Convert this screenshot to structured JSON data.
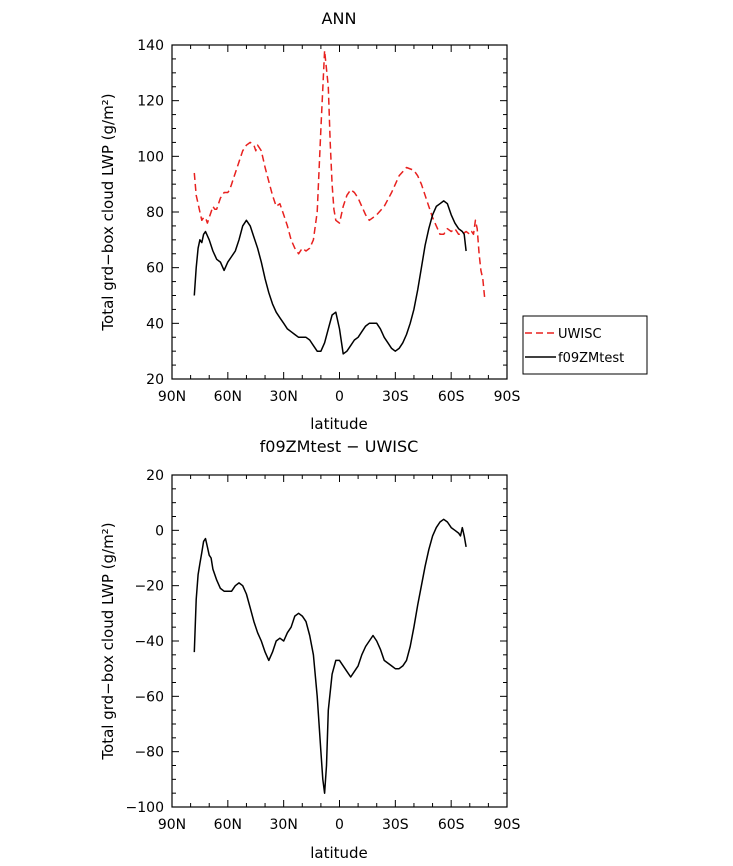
{
  "chart_data": [
    {
      "type": "line",
      "title": "ANN",
      "xlabel": "latitude",
      "ylabel": "Total grd−box cloud LWP (g/m²)",
      "xlim": [
        90,
        -90
      ],
      "ylim": [
        20,
        140
      ],
      "xticks": [
        90,
        60,
        30,
        0,
        -30,
        -60,
        -90
      ],
      "xtick_labels": [
        "90N",
        "60N",
        "30N",
        "0",
        "30S",
        "60S",
        "90S"
      ],
      "yticks": [
        20,
        40,
        60,
        80,
        100,
        120,
        140
      ],
      "ytick_labels": [
        "20",
        "40",
        "60",
        "80",
        "100",
        "120",
        "140"
      ],
      "legend_position": "right",
      "series": [
        {
          "name": "UWISC",
          "color": "#e8211f",
          "dash": "dashed",
          "x": [
            78,
            77,
            76,
            75,
            74,
            73,
            72,
            71,
            70,
            69,
            68,
            67,
            66,
            65,
            64,
            63,
            62,
            61,
            60,
            59,
            58,
            57,
            56,
            54,
            52,
            50,
            48,
            46,
            45,
            44,
            43,
            42,
            41,
            40,
            38,
            36,
            34,
            32,
            30,
            28,
            26,
            24,
            22,
            20,
            18,
            16,
            14,
            12,
            10,
            8,
            6,
            5,
            4,
            3,
            2,
            0,
            -2,
            -4,
            -6,
            -8,
            -10,
            -12,
            -14,
            -16,
            -18,
            -20,
            -24,
            -28,
            -32,
            -36,
            -40,
            -42,
            -44,
            -46,
            -48,
            -50,
            -52,
            -54,
            -56,
            -58,
            -60,
            -62,
            -64,
            -66,
            -68,
            -70,
            -71,
            -72,
            -73,
            -74,
            -75,
            -76,
            -77,
            -78
          ],
          "y": [
            94,
            86,
            83,
            80,
            77,
            78,
            78,
            76,
            78,
            80,
            82,
            81,
            81,
            83,
            85,
            86,
            87,
            87,
            87,
            88,
            90,
            92,
            94,
            98,
            102,
            104,
            105,
            104,
            102,
            104,
            103,
            102,
            99,
            96,
            91,
            86,
            82,
            83,
            79,
            75,
            70,
            67,
            65,
            67,
            66,
            67,
            70,
            80,
            110,
            138,
            125,
            105,
            90,
            81,
            77,
            76,
            82,
            86,
            88,
            87,
            85,
            82,
            79,
            77,
            78,
            79,
            82,
            87,
            93,
            96,
            95,
            93,
            90,
            86,
            82,
            78,
            75,
            72,
            72,
            74,
            73,
            74,
            72,
            72,
            73,
            72,
            73,
            72,
            77,
            74,
            65,
            59,
            56,
            49
          ]
        },
        {
          "name": "f09ZMtest",
          "color": "#000000",
          "dash": "solid",
          "x": [
            78,
            77,
            76,
            75,
            74,
            73,
            72,
            70,
            68,
            66,
            64,
            62,
            60,
            58,
            56,
            54,
            52,
            50,
            48,
            46,
            44,
            42,
            40,
            38,
            36,
            34,
            32,
            30,
            28,
            26,
            24,
            22,
            20,
            18,
            16,
            14,
            12,
            10,
            8,
            6,
            4,
            2,
            0,
            -2,
            -4,
            -6,
            -8,
            -10,
            -12,
            -14,
            -16,
            -18,
            -20,
            -22,
            -24,
            -26,
            -28,
            -30,
            -32,
            -34,
            -36,
            -38,
            -40,
            -42,
            -44,
            -46,
            -48,
            -50,
            -52,
            -54,
            -56,
            -58,
            -60,
            -62,
            -64,
            -66,
            -67,
            -68
          ],
          "y": [
            50,
            60,
            67,
            70,
            69,
            72,
            73,
            70,
            66,
            63,
            62,
            59,
            62,
            64,
            66,
            70,
            75,
            77,
            75,
            71,
            67,
            62,
            56,
            51,
            47,
            44,
            42,
            40,
            38,
            37,
            36,
            35,
            35,
            35,
            34,
            32,
            30,
            30,
            33,
            38,
            43,
            44,
            38,
            29,
            30,
            32,
            34,
            35,
            37,
            39,
            40,
            40,
            40,
            38,
            35,
            33,
            31,
            30,
            31,
            33,
            36,
            40,
            45,
            52,
            60,
            68,
            74,
            79,
            82,
            83,
            84,
            83,
            79,
            76,
            74,
            73,
            72,
            66
          ]
        }
      ]
    },
    {
      "type": "line",
      "title": "f09ZMtest − UWISC",
      "xlabel": "latitude",
      "ylabel": "Total grd−box cloud LWP (g/m²)",
      "xlim": [
        90,
        -90
      ],
      "ylim": [
        -100,
        20
      ],
      "xticks": [
        90,
        60,
        30,
        0,
        -30,
        -60,
        -90
      ],
      "xtick_labels": [
        "90N",
        "60N",
        "30N",
        "0",
        "30S",
        "60S",
        "90S"
      ],
      "yticks": [
        -100,
        -80,
        -60,
        -40,
        -20,
        0,
        20
      ],
      "ytick_labels": [
        "−100",
        "−80",
        "−60",
        "−40",
        "−20",
        "0",
        "20"
      ],
      "series": [
        {
          "color": "#000000",
          "dash": "solid",
          "x": [
            78,
            77,
            76,
            75,
            74,
            73,
            72,
            71,
            70,
            69,
            68,
            66,
            64,
            62,
            60,
            58,
            56,
            54,
            52,
            50,
            48,
            46,
            44,
            42,
            40,
            38,
            36,
            34,
            32,
            30,
            28,
            26,
            24,
            22,
            20,
            18,
            16,
            14,
            12,
            10,
            9,
            8,
            7,
            6,
            4,
            2,
            0,
            -2,
            -4,
            -6,
            -8,
            -10,
            -12,
            -14,
            -16,
            -18,
            -20,
            -22,
            -24,
            -26,
            -28,
            -30,
            -32,
            -34,
            -36,
            -38,
            -40,
            -42,
            -44,
            -46,
            -48,
            -50,
            -52,
            -54,
            -56,
            -58,
            -60,
            -62,
            -64,
            -65,
            -66,
            -67,
            -68
          ],
          "y": [
            -44,
            -25,
            -16,
            -12,
            -8,
            -4,
            -3,
            -6,
            -9,
            -10,
            -14,
            -18,
            -21,
            -22,
            -22,
            -22,
            -20,
            -19,
            -20,
            -23,
            -28,
            -33,
            -37,
            -40,
            -44,
            -47,
            -44,
            -40,
            -39,
            -40,
            -37,
            -35,
            -31,
            -30,
            -31,
            -33,
            -38,
            -45,
            -60,
            -80,
            -90,
            -95,
            -85,
            -65,
            -52,
            -47,
            -47,
            -49,
            -51,
            -53,
            -51,
            -49,
            -45,
            -42,
            -40,
            -38,
            -40,
            -43,
            -47,
            -48,
            -49,
            -50,
            -50,
            -49,
            -47,
            -42,
            -35,
            -27,
            -20,
            -13,
            -7,
            -2,
            1,
            3,
            4,
            3,
            1,
            0,
            -1,
            -2,
            1,
            -2,
            -6
          ]
        }
      ]
    }
  ],
  "legend": {
    "items": [
      {
        "label": "UWISC",
        "color": "#e8211f",
        "dash": "dashed"
      },
      {
        "label": "f09ZMtest",
        "color": "#000000",
        "dash": "solid"
      }
    ]
  }
}
